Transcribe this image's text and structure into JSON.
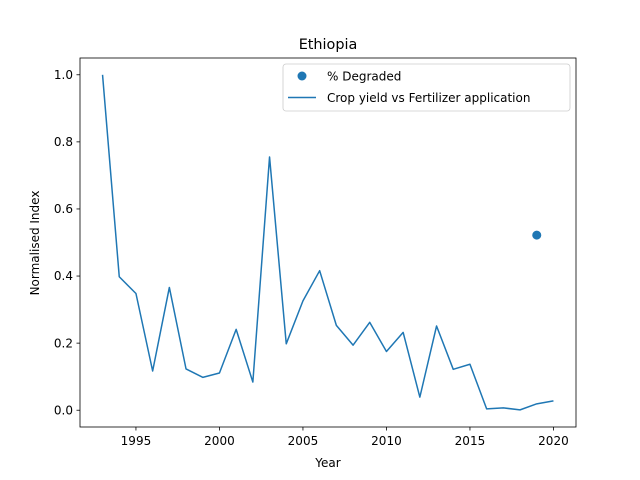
{
  "chart_data": {
    "type": "line",
    "title": "Ethiopia",
    "xlabel": "Year",
    "ylabel": "Normalised Index",
    "xlim": [
      1991.65,
      2021.35
    ],
    "ylim": [
      -0.05,
      1.05
    ],
    "xticks": [
      1995,
      2000,
      2005,
      2010,
      2015,
      2020
    ],
    "xtick_labels": [
      "1995",
      "2000",
      "2005",
      "2010",
      "2015",
      "2020"
    ],
    "yticks": [
      0.0,
      0.2,
      0.4,
      0.6,
      0.8,
      1.0
    ],
    "ytick_labels": [
      "0.0",
      "0.2",
      "0.4",
      "0.6",
      "0.8",
      "1.0"
    ],
    "grid": false,
    "legend_position": "top-right",
    "series": [
      {
        "name": "% Degraded",
        "type": "scatter",
        "color": "#1f77b4",
        "x": [
          2019
        ],
        "y": [
          0.522
        ]
      },
      {
        "name": "Crop yield vs Fertilizer application",
        "type": "line",
        "color": "#1f77b4",
        "x": [
          1993,
          1994,
          1995,
          1996,
          1997,
          1998,
          1999,
          2000,
          2001,
          2002,
          2003,
          2004,
          2005,
          2006,
          2007,
          2008,
          2009,
          2010,
          2011,
          2012,
          2013,
          2014,
          2015,
          2016,
          2017,
          2018,
          2019,
          2020
        ],
        "y": [
          1.0,
          0.398,
          0.348,
          0.117,
          0.366,
          0.123,
          0.098,
          0.111,
          0.241,
          0.084,
          0.755,
          0.198,
          0.326,
          0.416,
          0.253,
          0.194,
          0.262,
          0.175,
          0.232,
          0.039,
          0.251,
          0.122,
          0.137,
          0.004,
          0.007,
          0.001,
          0.019,
          0.028
        ]
      }
    ]
  }
}
